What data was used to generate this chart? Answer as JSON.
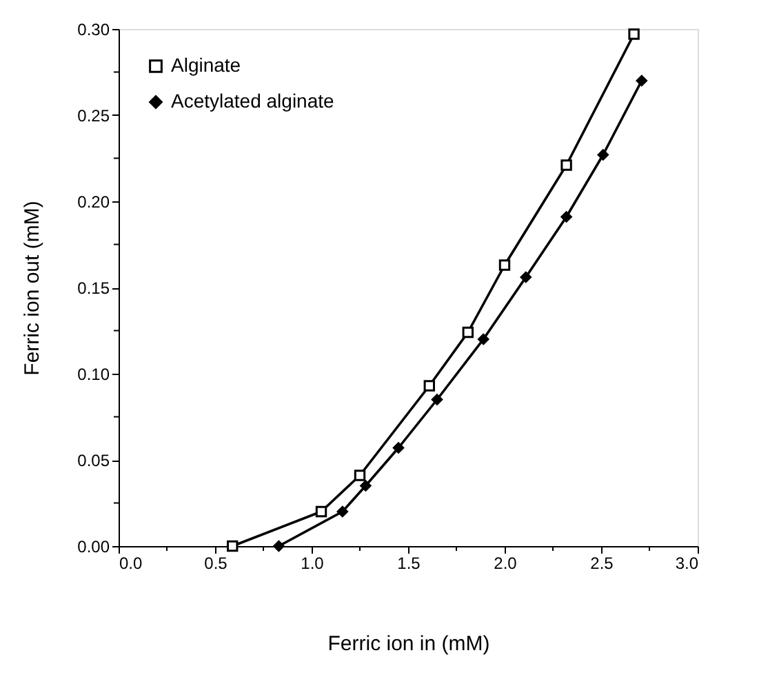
{
  "chart_data": {
    "type": "line",
    "xlabel": "Ferric ion in (mM)",
    "ylabel": "Ferric ion out (mM)",
    "xlim": [
      0,
      3.0
    ],
    "ylim": [
      0,
      0.3
    ],
    "xticks": [
      {
        "value": 0,
        "label": "0.0"
      },
      {
        "value": 0.25,
        "label": null
      },
      0.5,
      {
        "value": 0.75,
        "label": null
      },
      {
        "value": 1,
        "label": "1.0"
      },
      {
        "value": 1.25,
        "label": null
      },
      1.5,
      {
        "value": 1.75,
        "label": null
      },
      {
        "value": 2,
        "label": "2.0"
      },
      {
        "value": 2.25,
        "label": null
      },
      2.5,
      {
        "value": 2.75,
        "label": null
      },
      {
        "value": 3,
        "label": "3.0"
      }
    ],
    "yticks": [
      {
        "value": 0,
        "label": "0.00"
      },
      {
        "value": 0.025,
        "label": null
      },
      0.05,
      {
        "value": 0.075,
        "label": null
      },
      {
        "value": 0.1,
        "label": "0.10"
      },
      {
        "value": 0.125,
        "label": null
      },
      0.15,
      {
        "value": 0.175,
        "label": null
      },
      {
        "value": 0.2,
        "label": "0.20"
      },
      {
        "value": 0.225,
        "label": null
      },
      0.25,
      {
        "value": 0.275,
        "label": null
      },
      {
        "value": 0.3,
        "label": "0.30"
      }
    ],
    "legend": "top left",
    "grid": false,
    "line_style": "solid",
    "series": [
      {
        "name": "Alginate",
        "color": "#000000",
        "marker": "square",
        "x": [
          0.59,
          1.05,
          1.25,
          1.61,
          1.81,
          2.0,
          2.32,
          2.67
        ],
        "values": [
          0,
          0.02,
          0.041,
          0.093,
          0.124,
          0.163,
          0.221,
          0.297
        ]
      },
      {
        "name": "Acetylated alginate",
        "color": "#000000",
        "marker": "diamond",
        "x": [
          0.83,
          1.16,
          1.28,
          1.45,
          1.65,
          1.89,
          2.11,
          2.32,
          2.51,
          2.71
        ],
        "values": [
          0,
          0.02,
          0.035,
          0.057,
          0.085,
          0.12,
          0.156,
          0.191,
          0.227,
          0.27
        ]
      }
    ]
  }
}
